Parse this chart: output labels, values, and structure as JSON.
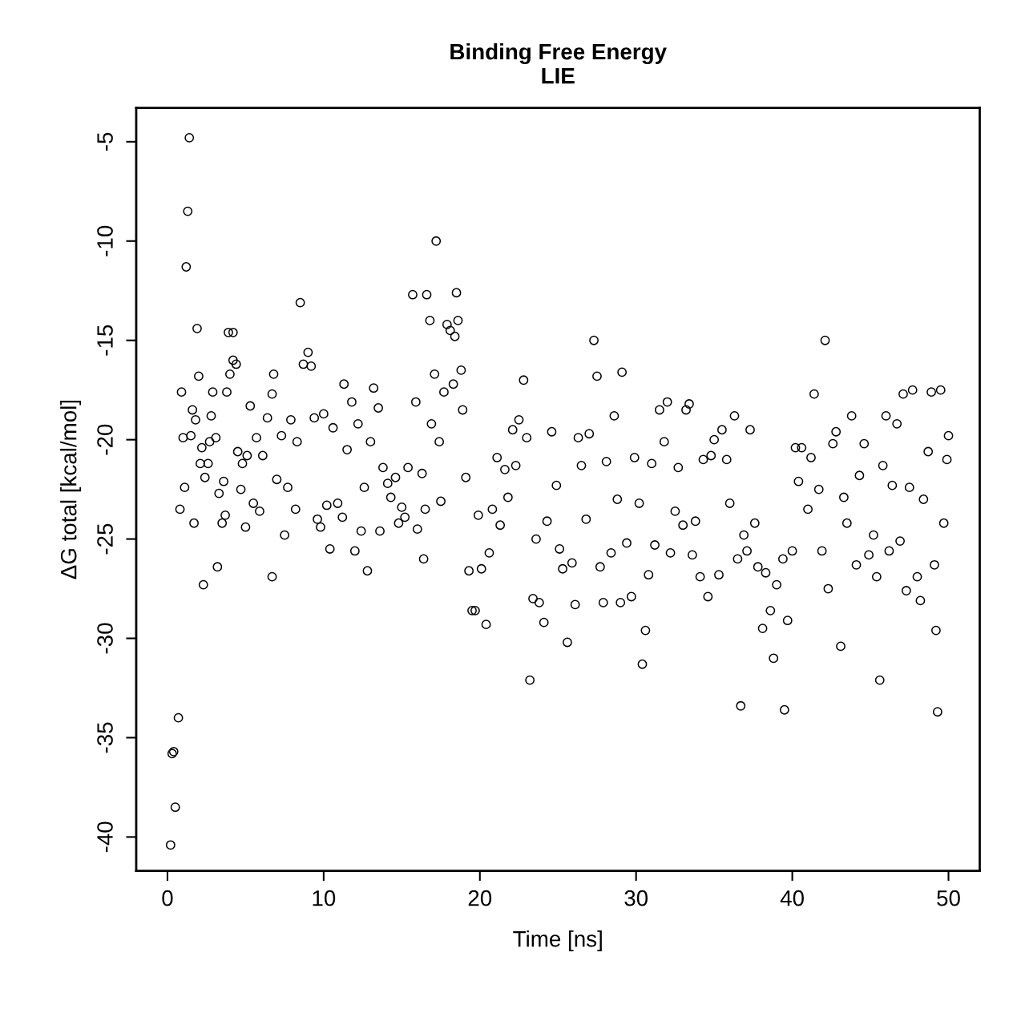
{
  "chart_data": {
    "type": "scatter",
    "title": "Binding Free Energy\nLIE",
    "xlabel": "Time [ns]",
    "ylabel": "ΔG total [kcal/mol]",
    "xlim": [
      -2,
      52
    ],
    "ylim": [
      -41.7,
      -3.3
    ],
    "xticks": [
      0,
      10,
      20,
      30,
      40,
      50
    ],
    "yticks": [
      -40,
      -35,
      -30,
      -25,
      -20,
      -15,
      -10,
      -5
    ],
    "marker": "circle",
    "grid": false,
    "legend": false,
    "series": [
      {
        "color": "#000000",
        "x": [
          0.2,
          0.3,
          0.4,
          0.7,
          0.5,
          0.8,
          0.9,
          1.0,
          1.1,
          1.2,
          1.3,
          1.4,
          1.5,
          1.6,
          1.7,
          1.8,
          1.9,
          2.0,
          2.1,
          2.2,
          2.3,
          2.4,
          2.6,
          2.7,
          2.8,
          2.9,
          3.1,
          3.2,
          3.3,
          3.5,
          3.6,
          3.7,
          3.8,
          3.9,
          4.0,
          4.2,
          4.2,
          4.4,
          4.5,
          4.7,
          4.8,
          5.0,
          5.1,
          5.3,
          5.5,
          5.7,
          5.9,
          6.1,
          6.4,
          6.7,
          6.7,
          6.8,
          7.0,
          7.3,
          7.5,
          7.7,
          7.9,
          8.2,
          8.3,
          8.5,
          8.7,
          9.0,
          9.2,
          9.4,
          9.6,
          9.8,
          10.0,
          10.2,
          10.4,
          10.6,
          10.9,
          11.2,
          11.3,
          11.5,
          11.8,
          12.0,
          12.2,
          12.4,
          12.6,
          12.8,
          13.0,
          13.2,
          13.5,
          13.6,
          13.8,
          14.1,
          14.3,
          14.6,
          14.8,
          15.0,
          15.2,
          15.4,
          15.7,
          15.9,
          16.0,
          16.3,
          16.4,
          16.5,
          16.6,
          16.8,
          16.9,
          17.1,
          17.2,
          17.4,
          17.5,
          17.7,
          17.9,
          18.1,
          18.3,
          18.4,
          18.5,
          18.6,
          18.8,
          18.9,
          19.1,
          19.3,
          19.5,
          19.7,
          19.9,
          20.1,
          20.4,
          20.6,
          20.8,
          21.1,
          21.3,
          21.6,
          21.8,
          22.1,
          22.3,
          22.5,
          22.8,
          23.0,
          23.2,
          23.4,
          23.6,
          23.8,
          24.1,
          24.3,
          24.6,
          24.9,
          25.1,
          25.3,
          25.6,
          25.9,
          26.1,
          26.3,
          26.5,
          26.8,
          27.0,
          27.3,
          27.5,
          27.7,
          27.9,
          28.1,
          28.4,
          28.6,
          28.8,
          29.0,
          29.1,
          29.4,
          29.7,
          29.9,
          30.2,
          30.4,
          30.6,
          30.8,
          31.0,
          31.2,
          31.5,
          31.8,
          32.0,
          32.2,
          32.5,
          32.7,
          33.0,
          33.2,
          33.4,
          33.6,
          33.8,
          34.1,
          34.3,
          34.6,
          34.8,
          35.0,
          35.3,
          35.5,
          35.8,
          36.0,
          36.3,
          36.5,
          36.7,
          36.9,
          37.1,
          37.3,
          37.6,
          37.8,
          38.1,
          38.3,
          38.6,
          38.8,
          39.0,
          39.4,
          39.5,
          39.7,
          40.0,
          40.2,
          40.4,
          40.6,
          41.0,
          41.2,
          41.4,
          41.7,
          41.9,
          42.1,
          42.3,
          42.6,
          42.8,
          43.1,
          43.3,
          43.5,
          43.8,
          44.1,
          44.3,
          44.6,
          44.9,
          45.2,
          45.4,
          45.6,
          45.8,
          46.0,
          46.2,
          46.4,
          46.7,
          46.9,
          47.1,
          47.3,
          47.5,
          47.7,
          48.0,
          48.2,
          48.4,
          48.7,
          48.9,
          49.1,
          49.2,
          49.3,
          49.5,
          49.7,
          49.9,
          50.0
        ],
        "values": [
          -40.4,
          -35.8,
          -35.7,
          -34.0,
          -38.5,
          -23.5,
          -17.6,
          -19.9,
          -22.4,
          -11.3,
          -8.5,
          -4.8,
          -19.8,
          -18.5,
          -24.2,
          -19.0,
          -14.4,
          -16.8,
          -21.2,
          -20.4,
          -27.3,
          -21.9,
          -21.2,
          -20.1,
          -18.8,
          -17.6,
          -19.9,
          -26.4,
          -22.7,
          -24.2,
          -22.1,
          -23.8,
          -17.6,
          -14.6,
          -16.7,
          -14.6,
          -16.0,
          -16.2,
          -20.6,
          -22.5,
          -21.2,
          -24.4,
          -20.8,
          -18.3,
          -23.2,
          -19.9,
          -23.6,
          -20.8,
          -18.9,
          -17.7,
          -26.9,
          -16.7,
          -22.0,
          -19.8,
          -24.8,
          -22.4,
          -19.0,
          -23.5,
          -20.1,
          -13.1,
          -16.2,
          -15.6,
          -16.3,
          -18.9,
          -24.0,
          -24.4,
          -18.7,
          -23.3,
          -25.5,
          -19.4,
          -23.2,
          -23.9,
          -17.2,
          -20.5,
          -18.1,
          -25.6,
          -19.2,
          -24.6,
          -22.4,
          -26.6,
          -20.1,
          -17.4,
          -18.4,
          -24.6,
          -21.4,
          -22.2,
          -22.9,
          -21.9,
          -24.2,
          -23.4,
          -23.9,
          -21.4,
          -12.7,
          -18.1,
          -24.5,
          -21.7,
          -26.0,
          -23.5,
          -12.7,
          -14.0,
          -19.2,
          -16.7,
          -10.0,
          -20.1,
          -23.1,
          -17.6,
          -14.2,
          -14.5,
          -17.2,
          -14.8,
          -12.6,
          -14.0,
          -16.5,
          -18.5,
          -21.9,
          -26.6,
          -28.6,
          -28.6,
          -23.8,
          -26.5,
          -29.3,
          -25.7,
          -23.5,
          -20.9,
          -24.3,
          -21.5,
          -22.9,
          -19.5,
          -21.3,
          -19.0,
          -17.0,
          -19.9,
          -32.1,
          -28.0,
          -25.0,
          -28.2,
          -29.2,
          -24.1,
          -19.6,
          -22.3,
          -25.5,
          -26.5,
          -30.2,
          -26.2,
          -28.3,
          -19.9,
          -21.3,
          -24.0,
          -19.7,
          -15.0,
          -16.8,
          -26.4,
          -28.2,
          -21.1,
          -25.7,
          -18.8,
          -23.0,
          -28.2,
          -16.6,
          -25.2,
          -27.9,
          -20.9,
          -23.2,
          -31.3,
          -29.6,
          -26.8,
          -21.2,
          -25.3,
          -18.5,
          -20.1,
          -18.1,
          -25.7,
          -23.6,
          -21.4,
          -24.3,
          -18.5,
          -18.2,
          -25.8,
          -24.1,
          -26.9,
          -21.0,
          -27.9,
          -20.8,
          -20.0,
          -26.8,
          -19.5,
          -21.0,
          -23.2,
          -18.8,
          -26.0,
          -33.4,
          -24.8,
          -25.6,
          -19.5,
          -24.2,
          -26.4,
          -29.5,
          -26.7,
          -28.6,
          -31.0,
          -27.3,
          -26.0,
          -33.6,
          -29.1,
          -25.6,
          -20.4,
          -22.1,
          -20.4,
          -23.5,
          -20.9,
          -17.7,
          -22.5,
          -25.6,
          -15.0,
          -27.5,
          -20.2,
          -19.6,
          -30.4,
          -22.9,
          -24.2,
          -18.8,
          -26.3,
          -21.8,
          -20.2,
          -25.8,
          -24.8,
          -26.9,
          -32.1,
          -21.3,
          -18.8,
          -25.6,
          -22.3,
          -19.2,
          -25.1,
          -17.7,
          -27.6,
          -22.4,
          -17.5,
          -26.9,
          -28.1,
          -23.0,
          -20.6,
          -17.6,
          -26.3,
          -29.6,
          -33.7,
          -17.5,
          -24.2,
          -21.0,
          -19.8
        ]
      }
    ]
  }
}
